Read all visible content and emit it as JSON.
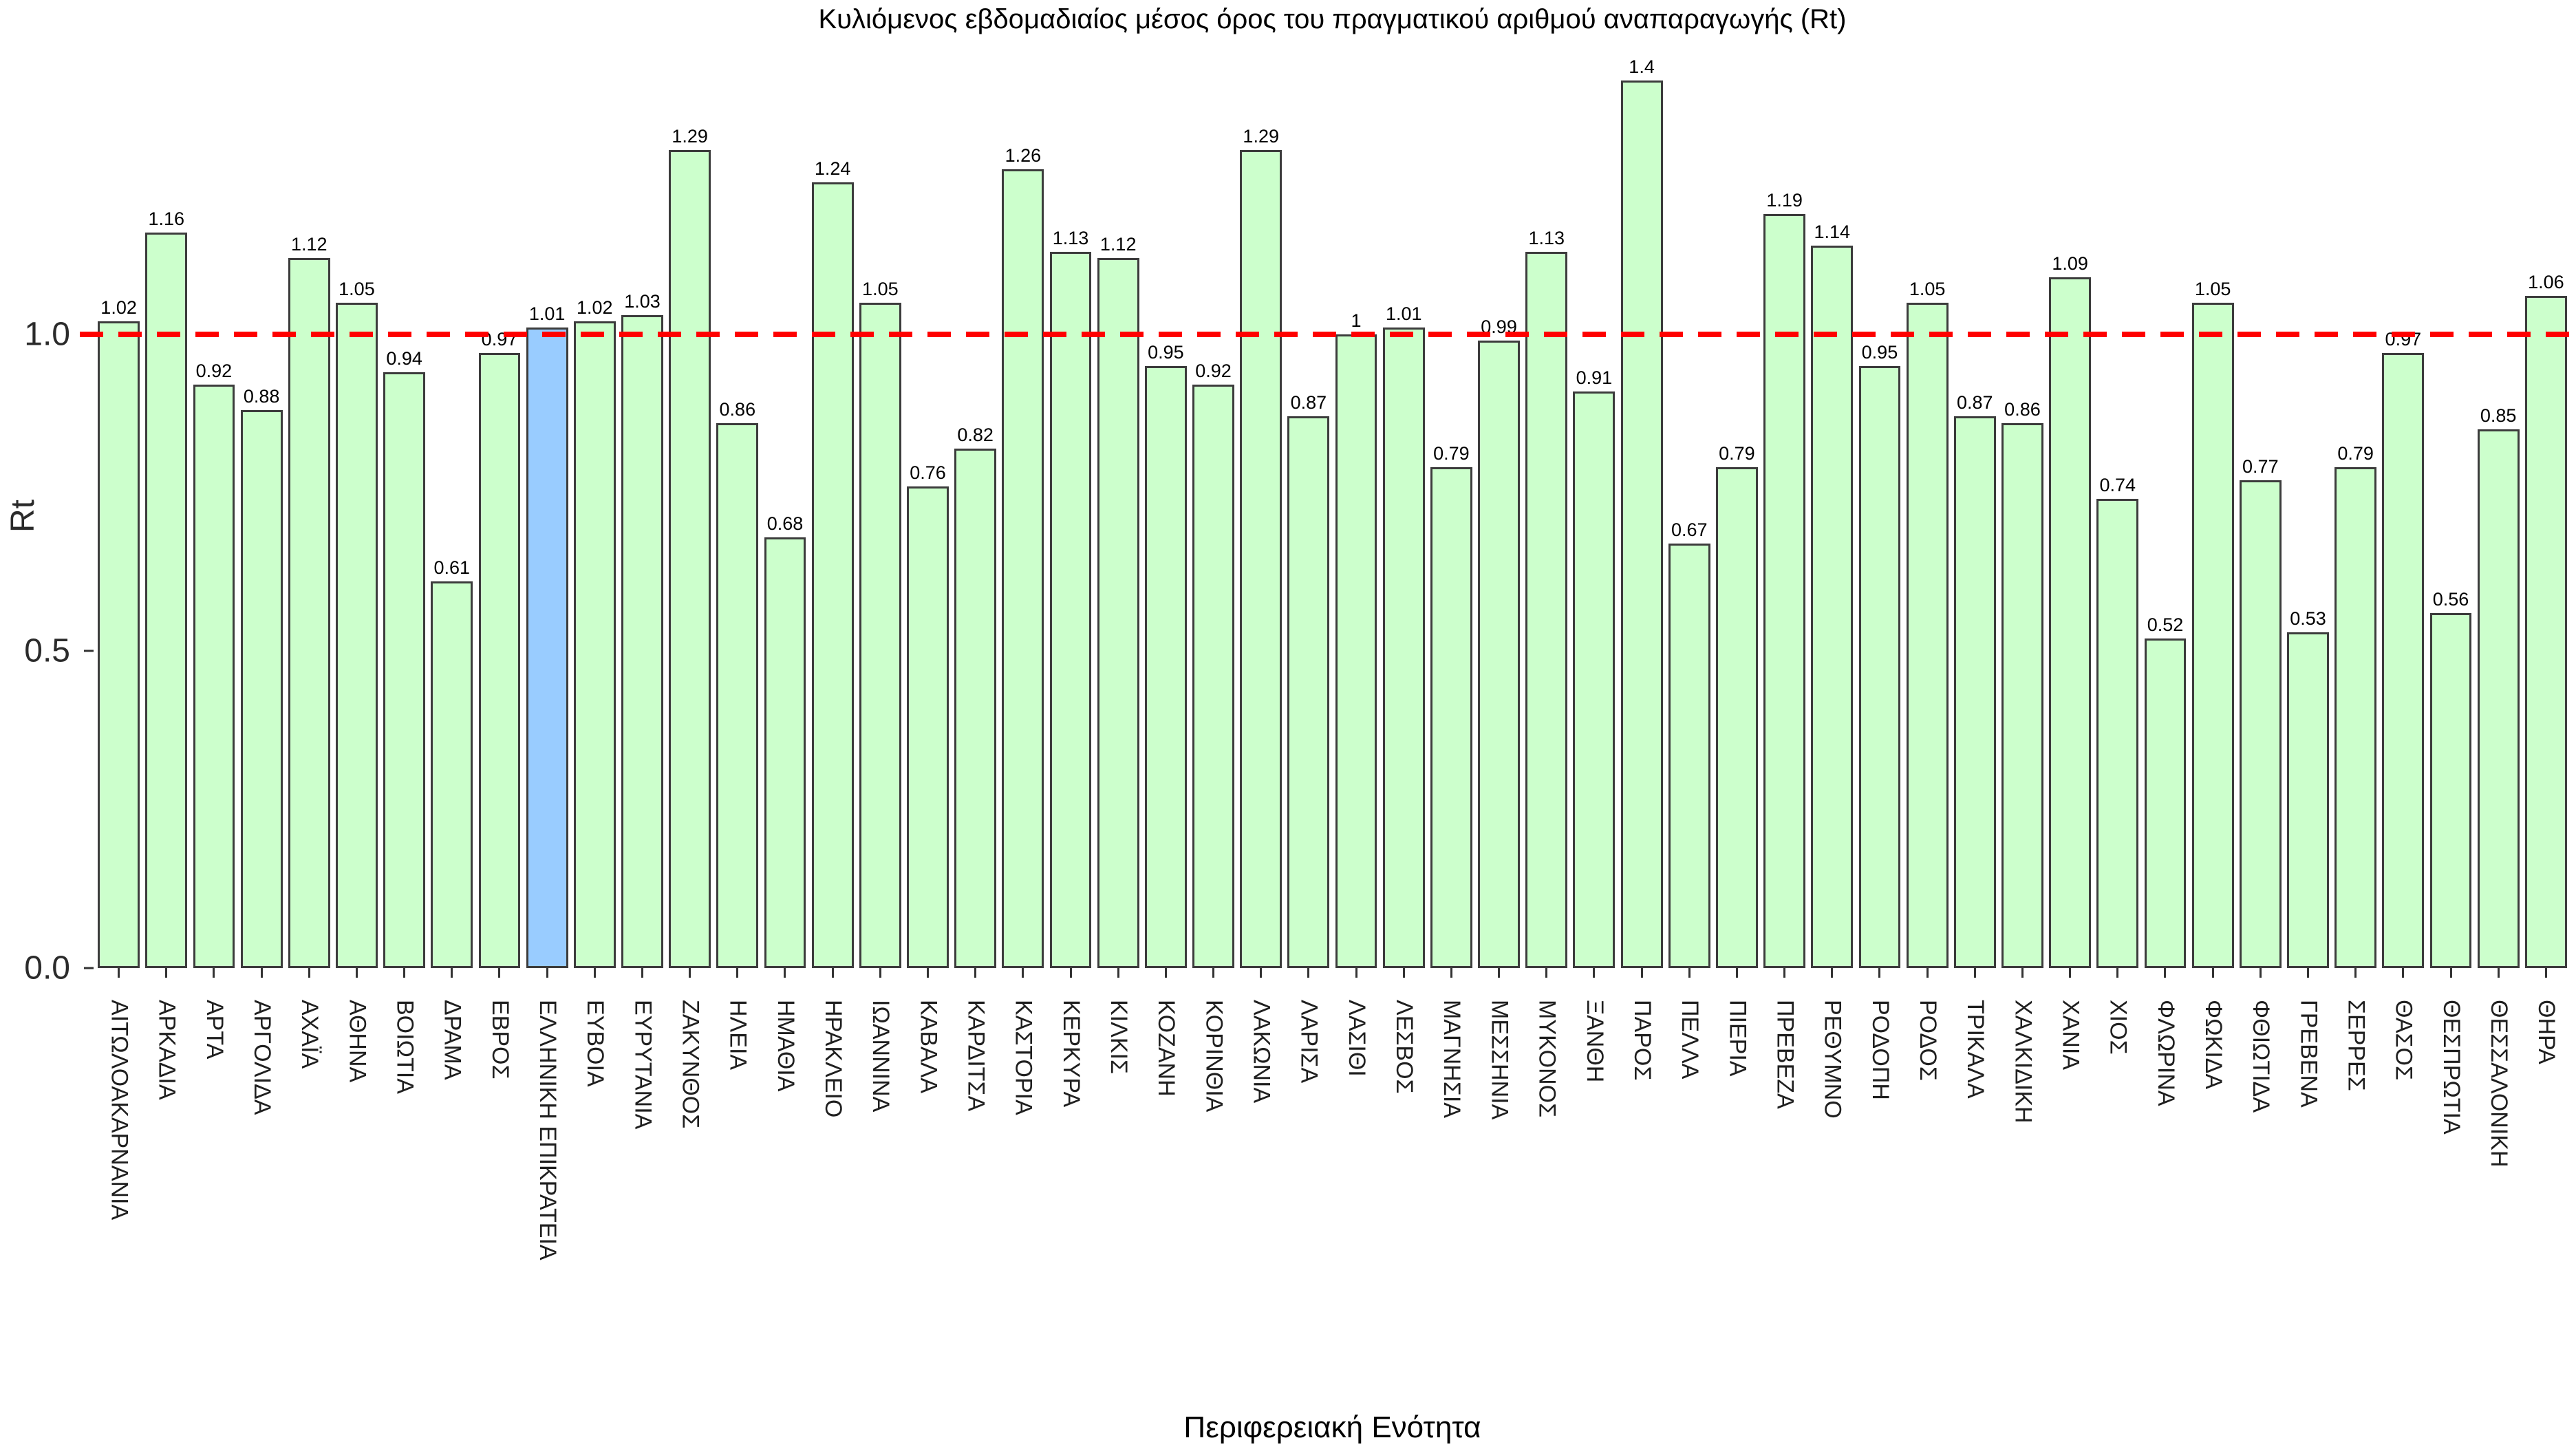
{
  "chart_data": {
    "type": "bar",
    "title": "Κυλιόμενος εβδομαδιαίος μέσος όρος του πραγματικού αριθμού αναπαραγωγής (Rt)",
    "xlabel": "Περιφερειακή Ενότητα",
    "ylabel": "Rt",
    "ylim": [
      0,
      1.5
    ],
    "yticks": [
      {
        "label": "0.0",
        "value": 0
      },
      {
        "label": "0.5",
        "value": 0.5
      },
      {
        "label": "1.0",
        "value": 1
      }
    ],
    "grid": false,
    "legend_position": "none",
    "reference_line": {
      "value": 1,
      "color": "#ff0000",
      "style": "dashed"
    },
    "bar_color": "#ccffcc",
    "highlight_bar_color": "#99ccff",
    "bar_border_color": "#3c3c3c",
    "highlight_index": 9,
    "highlight_category": "ΕΛΛΗΝΙΚΗ ΕΠΙΚΡΑΤΕΙΑ",
    "categories": [
      "ΑΙΤΩΛΟΑΚΑΡΝΑΝΙΑ",
      "ΑΡΚΑΔΙΑ",
      "ΑΡΤΑ",
      "ΑΡΓΟΛΙΔΑ",
      "ΑΧΑΪΑ",
      "ΑΘΗΝΑ",
      "ΒΟΙΩΤΙΑ",
      "ΔΡΑΜΑ",
      "ΕΒΡΟΣ",
      "ΕΛΛΗΝΙΚΗ ΕΠΙΚΡΑΤΕΙΑ",
      "ΕΥΒΟΙΑ",
      "ΕΥΡΥΤΑΝΙΑ",
      "ΖΑΚΥΝΘΟΣ",
      "ΗΛΕΙΑ",
      "ΗΜΑΘΙΑ",
      "ΗΡΑΚΛΕΙΟ",
      "ΙΩΑΝΝΙΝΑ",
      "ΚΑΒΑΛΑ",
      "ΚΑΡΔΙΤΣΑ",
      "ΚΑΣΤΟΡΙΑ",
      "ΚΕΡΚΥΡΑ",
      "ΚΙΛΚΙΣ",
      "ΚΟΖΑΝΗ",
      "ΚΟΡΙΝΘΙΑ",
      "ΛΑΚΩΝΙΑ",
      "ΛΑΡΙΣΑ",
      "ΛΑΣΙΘΙ",
      "ΛΕΣΒΟΣ",
      "ΜΑΓΝΗΣΙΑ",
      "ΜΕΣΣΗΝΙΑ",
      "ΜΥΚΟΝΟΣ",
      "ΞΑΝΘΗ",
      "ΠΑΡΟΣ",
      "ΠΕΛΛΑ",
      "ΠΙΕΡΙΑ",
      "ΠΡΕΒΕΖΑ",
      "ΡΕΘΥΜΝΟ",
      "ΡΟΔΟΠΗ",
      "ΡΟΔΟΣ",
      "ΤΡΙΚΑΛΑ",
      "ΧΑΛΚΙΔΙΚΗ",
      "ΧΑΝΙΑ",
      "ΧΙΟΣ",
      "ΦΛΩΡΙΝΑ",
      "ΦΩΚΙΔΑ",
      "ΦΘΙΩΤΙΔΑ",
      "ΓΡΕΒΕΝΑ",
      "ΣΕΡΡΕΣ",
      "ΘΑΣΟΣ",
      "ΘΕΣΠΡΩΤΙΑ",
      "ΘΕΣΣΑΛΟΝΙΚΗ",
      "ΘΗΡΑ"
    ],
    "values": [
      1.02,
      1.16,
      0.92,
      0.88,
      1.12,
      1.05,
      0.94,
      0.61,
      0.97,
      1.01,
      1.02,
      1.03,
      1.29,
      0.86,
      0.68,
      1.24,
      1.05,
      0.76,
      0.82,
      1.26,
      1.13,
      1.12,
      0.95,
      0.92,
      1.29,
      0.87,
      1,
      1.01,
      0.79,
      0.99,
      1.13,
      0.91,
      1.4,
      0.67,
      0.79,
      1.19,
      1.14,
      0.95,
      1.05,
      0.87,
      0.86,
      1.09,
      0.74,
      0.52,
      1.05,
      0.77,
      0.53,
      0.79,
      0.97,
      0.56,
      0.85,
      1.06
    ],
    "value_labels": [
      "1.02",
      "1.16",
      "0.92",
      "0.88",
      "1.12",
      "1.05",
      "0.94",
      "0.61",
      "0.97",
      "1.01",
      "1.02",
      "1.03",
      "1.29",
      "0.86",
      "0.68",
      "1.24",
      "1.05",
      "0.76",
      "0.82",
      "1.26",
      "1.13",
      "1.12",
      "0.95",
      "0.92",
      "1.29",
      "0.87",
      "1",
      "1.01",
      "0.79",
      "0.99",
      "1.13",
      "0.91",
      "1.4",
      "0.67",
      "0.79",
      "1.19",
      "1.14",
      "0.95",
      "1.05",
      "0.87",
      "0.86",
      "1.09",
      "0.74",
      "0.52",
      "1.05",
      "0.77",
      "0.53",
      "0.79",
      "0.97",
      "0.56",
      "0.85",
      "1.06"
    ]
  }
}
